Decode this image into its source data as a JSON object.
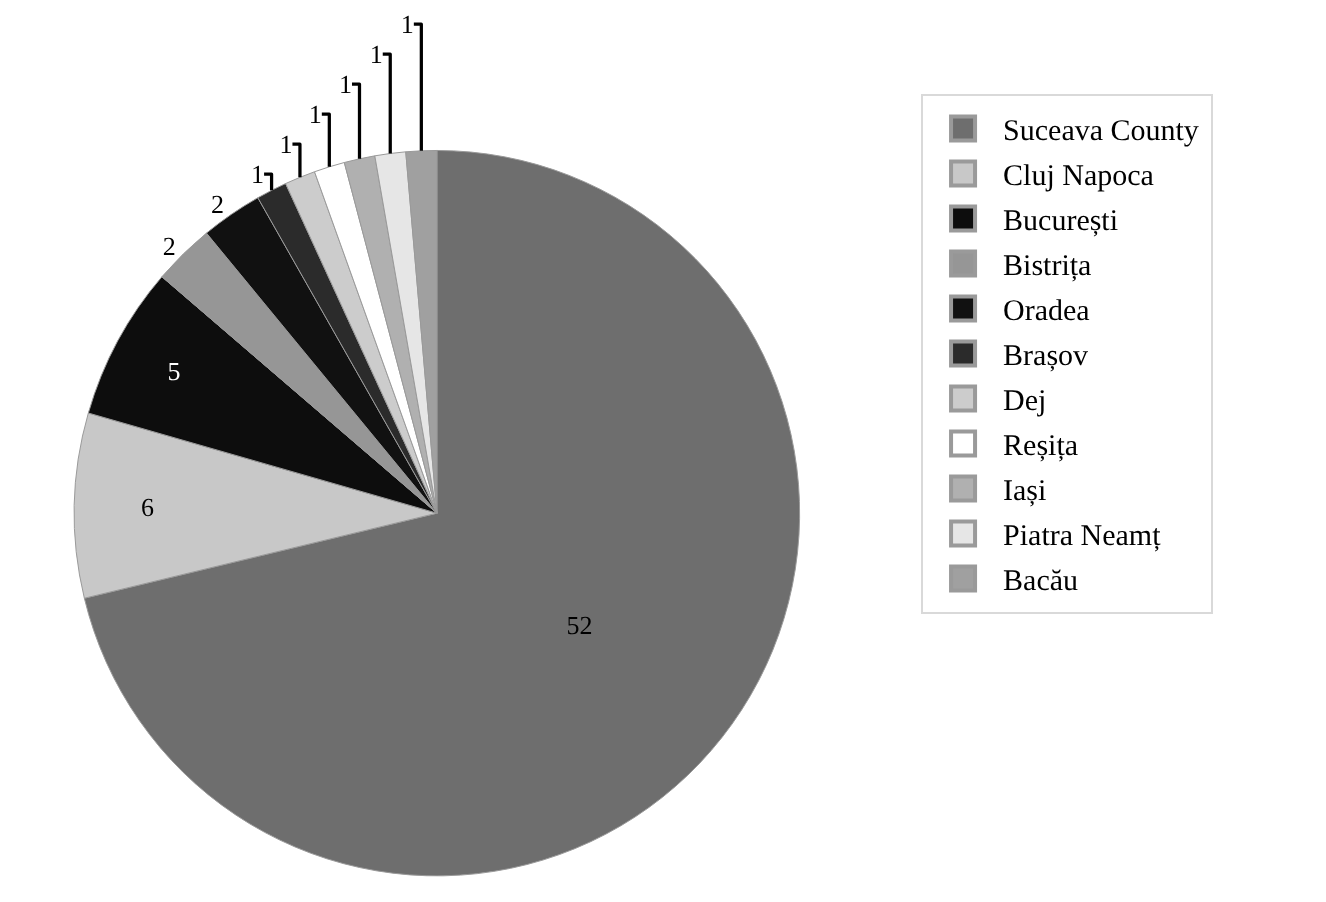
{
  "chart_data": {
    "type": "pie",
    "categories": [
      "Suceava County",
      "Cluj Napoca",
      "București",
      "Bistrița",
      "Oradea",
      "Brașov",
      "Dej",
      "Reșița",
      "Iași",
      "Piatra Neamț",
      "Bacău"
    ],
    "values": [
      52,
      6,
      5,
      2,
      2,
      1,
      1,
      1,
      1,
      1,
      1
    ],
    "colors": [
      "#6e6e6e",
      "#c8c8c8",
      "#0d0d0d",
      "#969696",
      "#111111",
      "#2b2b2b",
      "#cccccc",
      "#ffffff",
      "#b0b0b0",
      "#e6e6e6",
      "#a0a0a0"
    ],
    "data_labels": true,
    "legend": "right"
  }
}
